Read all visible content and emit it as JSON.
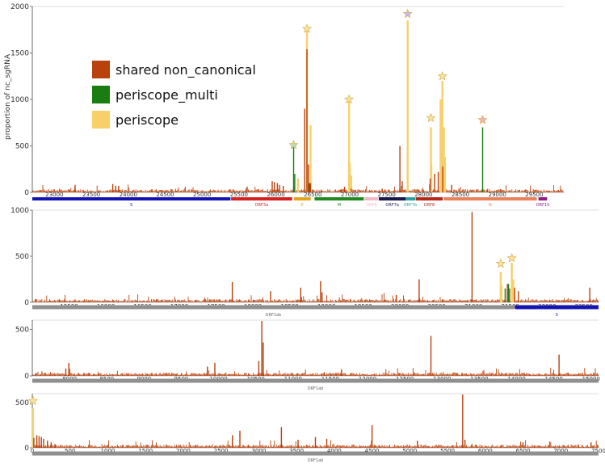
{
  "colors": {
    "shared": "#b8410c",
    "multi": "#1a7d10",
    "periscope": "#f7d06a",
    "star_default": "#f6e3a0",
    "star_multi": "#b9dfb4",
    "star_purple": "#c7b8ee",
    "star_red": "#f0b4b4"
  },
  "chart_data": [
    {
      "type": "bar",
      "name": "panel-1",
      "ylabel": "proportion of nc_sgRNA",
      "xlim": [
        22700,
        29900
      ],
      "ylim": [
        0,
        2000
      ],
      "yticks": [
        0,
        500,
        1000,
        1500,
        2000
      ],
      "xticks": [
        23000,
        23500,
        24000,
        24500,
        25000,
        25500,
        26000,
        26500,
        27000,
        27500,
        28000,
        28500,
        29000,
        29500
      ],
      "legend": {
        "position": "upper-left",
        "items": [
          {
            "label": "shared non_canonical",
            "key": "shared"
          },
          {
            "label": "periscope_multi",
            "key": "multi"
          },
          {
            "label": "periscope",
            "key": "periscope"
          }
        ]
      },
      "series": [
        {
          "key": "periscope",
          "points": [
            [
              26300,
              150
            ],
            [
              26420,
              1760
            ],
            [
              26470,
              720
            ],
            [
              26990,
              1000
            ],
            [
              27000,
              320
            ],
            [
              27020,
              180
            ],
            [
              27785,
              1850
            ],
            [
              28100,
              700
            ],
            [
              28105,
              320
            ],
            [
              28230,
              1000
            ],
            [
              28255,
              1200
            ],
            [
              28275,
              700
            ],
            [
              28290,
              380
            ]
          ]
        },
        {
          "key": "shared",
          "points": [
            [
              23280,
              80
            ],
            [
              23790,
              90
            ],
            [
              23830,
              70
            ],
            [
              23870,
              70
            ],
            [
              25600,
              50
            ],
            [
              25950,
              120
            ],
            [
              25980,
              110
            ],
            [
              26020,
              100
            ],
            [
              26050,
              80
            ],
            [
              26100,
              70
            ],
            [
              26240,
              60
            ],
            [
              26390,
              900
            ],
            [
              26420,
              1540
            ],
            [
              26440,
              300
            ],
            [
              26470,
              100
            ],
            [
              26880,
              30
            ],
            [
              26930,
              60
            ],
            [
              27020,
              40
            ],
            [
              27440,
              40
            ],
            [
              27680,
              500
            ],
            [
              27710,
              120
            ],
            [
              28090,
              150
            ],
            [
              28150,
              200
            ],
            [
              28200,
              220
            ],
            [
              28260,
              280
            ],
            [
              28380,
              80
            ],
            [
              28480,
              40
            ],
            [
              28860,
              30
            ],
            [
              29700,
              20
            ]
          ]
        },
        {
          "key": "multi",
          "points": [
            [
              26240,
              510
            ],
            [
              26255,
              200
            ],
            [
              26455,
              100
            ],
            [
              28800,
              700
            ]
          ]
        }
      ],
      "stars": [
        {
          "x": 26240,
          "y": 510,
          "color": "star_multi"
        },
        {
          "x": 26420,
          "y": 1760,
          "color": "star_default"
        },
        {
          "x": 26990,
          "y": 1000,
          "color": "star_default"
        },
        {
          "x": 27785,
          "y": 1920,
          "color": "star_purple"
        },
        {
          "x": 28100,
          "y": 800,
          "color": "star_default"
        },
        {
          "x": 28255,
          "y": 1250,
          "color": "star_default"
        },
        {
          "x": 28800,
          "y": 780,
          "color": "star_red"
        }
      ],
      "genes": [
        {
          "label": "S",
          "start": 22700,
          "end": 25384,
          "color": "#1414b0"
        },
        {
          "label": "ORF3a",
          "start": 25393,
          "end": 26220,
          "color": "#d42020"
        },
        {
          "label": "E",
          "start": 26245,
          "end": 26472,
          "color": "#e3a51c"
        },
        {
          "label": "M",
          "start": 26523,
          "end": 27191,
          "color": "#208a20"
        },
        {
          "label": "ORF6",
          "start": 27202,
          "end": 27387,
          "color": "#f2b6cb"
        },
        {
          "label": "ORF7a",
          "start": 27394,
          "end": 27759,
          "color": "#18184a"
        },
        {
          "label": "ORF7b",
          "start": 27756,
          "end": 27887,
          "color": "#2aa0a0"
        },
        {
          "label": "ORF8",
          "start": 27894,
          "end": 28259,
          "color": "#b8281a"
        },
        {
          "label": "N",
          "start": 28274,
          "end": 29533,
          "color": "#e8825a"
        },
        {
          "label": "ORF10",
          "start": 29558,
          "end": 29674,
          "color": "#8a1a8a"
        }
      ]
    },
    {
      "type": "bar",
      "name": "panel-2",
      "xlim": [
        15000,
        22700
      ],
      "ylim": [
        0,
        1000
      ],
      "yticks": [
        0,
        500,
        1000
      ],
      "xticks": [
        15500,
        16000,
        16500,
        17000,
        17500,
        18000,
        18500,
        19000,
        19500,
        20000,
        20500,
        21000,
        21500,
        22000,
        22500
      ],
      "series": [
        {
          "key": "periscope",
          "points": [
            [
              21370,
              330
            ],
            [
              21380,
              180
            ],
            [
              21520,
              430
            ],
            [
              21540,
              250
            ]
          ]
        },
        {
          "key": "shared",
          "points": [
            [
              17720,
              220
            ],
            [
              18240,
              120
            ],
            [
              18650,
              160
            ],
            [
              18920,
              230
            ],
            [
              18940,
              110
            ],
            [
              19950,
              80
            ],
            [
              20260,
              250
            ],
            [
              20980,
              980
            ],
            [
              21460,
              200
            ],
            [
              21490,
              150
            ],
            [
              21560,
              160
            ],
            [
              21610,
              120
            ],
            [
              22580,
              160
            ]
          ]
        },
        {
          "key": "multi",
          "points": [
            [
              21430,
              150
            ],
            [
              21475,
              200
            ]
          ]
        }
      ],
      "stars": [
        {
          "x": 21370,
          "y": 420,
          "color": "star_default"
        },
        {
          "x": 21520,
          "y": 480,
          "color": "star_default"
        }
      ],
      "genes": [
        {
          "label": "ORF1ab",
          "start": 15000,
          "end": 21555,
          "color": "#8f8f8f"
        },
        {
          "label": "S",
          "start": 21563,
          "end": 22700,
          "color": "#1414b0"
        }
      ]
    },
    {
      "type": "bar",
      "name": "panel-3",
      "xlim": [
        7500,
        15100
      ],
      "ylim": [
        0,
        600
      ],
      "yticks": [
        0,
        500
      ],
      "xticks": [
        8000,
        8500,
        9000,
        9500,
        10000,
        10500,
        11000,
        11500,
        12000,
        12500,
        13000,
        13500,
        14000,
        14500,
        15000
      ],
      "series": [
        {
          "key": "periscope",
          "points": []
        },
        {
          "key": "shared",
          "points": [
            [
              7950,
              80
            ],
            [
              7990,
              140
            ],
            [
              9850,
              100
            ],
            [
              9950,
              140
            ],
            [
              10540,
              160
            ],
            [
              10580,
              590
            ],
            [
              10600,
              360
            ],
            [
              11420,
              40
            ],
            [
              11650,
              70
            ],
            [
              12850,
              430
            ],
            [
              14570,
              230
            ]
          ]
        },
        {
          "key": "multi",
          "points": []
        }
      ],
      "stars": [],
      "genes": [
        {
          "label": "ORF1ab",
          "start": 7500,
          "end": 15100,
          "color": "#8f8f8f"
        }
      ]
    },
    {
      "type": "bar",
      "name": "panel-4",
      "xlim": [
        0,
        7500
      ],
      "ylim": [
        0,
        600
      ],
      "yticks": [
        0,
        500
      ],
      "xticks": [
        0,
        500,
        1000,
        1500,
        2000,
        2500,
        3000,
        3500,
        4000,
        4500,
        5000,
        5500,
        6000,
        6500,
        7000,
        7500
      ],
      "series": [
        {
          "key": "periscope",
          "points": [
            [
              10,
              440
            ]
          ]
        },
        {
          "key": "shared",
          "points": [
            [
              20,
              110
            ],
            [
              60,
              140
            ],
            [
              90,
              130
            ],
            [
              120,
              120
            ],
            [
              150,
              100
            ],
            [
              200,
              80
            ],
            [
              250,
              60
            ],
            [
              300,
              40
            ],
            [
              2650,
              140
            ],
            [
              2750,
              190
            ],
            [
              3300,
              230
            ],
            [
              3520,
              90
            ],
            [
              3750,
              120
            ],
            [
              3900,
              100
            ],
            [
              4500,
              250
            ],
            [
              5100,
              80
            ],
            [
              5700,
              590
            ],
            [
              5730,
              90
            ],
            [
              6500,
              60
            ],
            [
              7400,
              60
            ]
          ]
        },
        {
          "key": "multi",
          "points": []
        }
      ],
      "stars": [
        {
          "x": 10,
          "y": 520,
          "color": "star_default"
        }
      ],
      "genes": [
        {
          "label": "ORF1ab",
          "start": 0,
          "end": 7500,
          "color": "#8f8f8f"
        }
      ]
    }
  ]
}
